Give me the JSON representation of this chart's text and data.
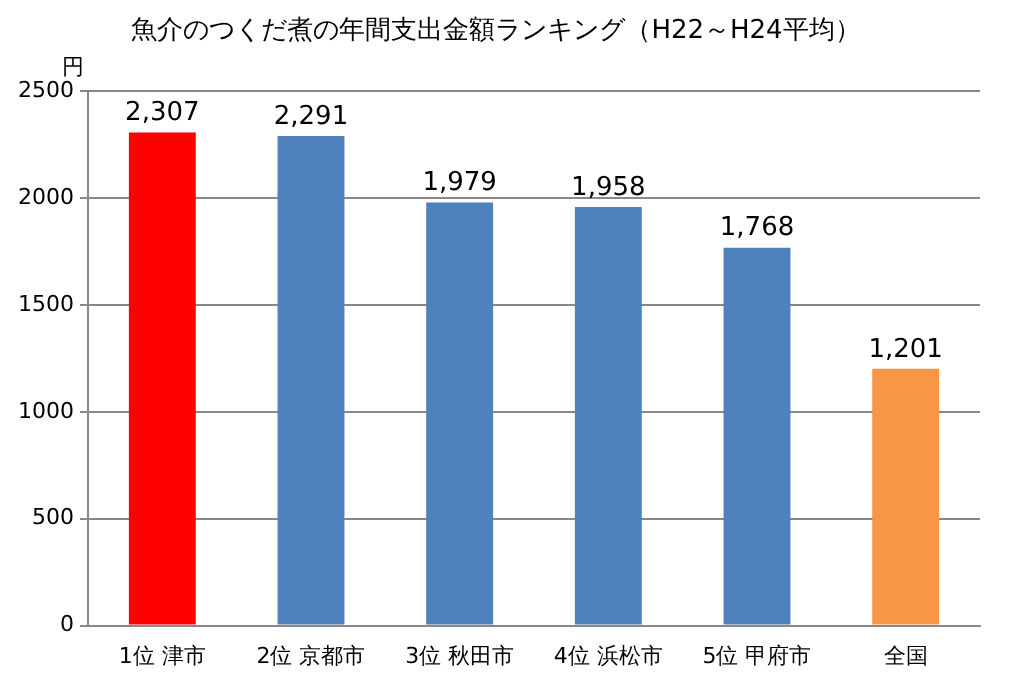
{
  "chart_data": {
    "type": "bar",
    "title": "魚介のつくだ煮の年間支出金額ランキング（H22～H24平均）",
    "ylabel": "円",
    "categories": [
      "1位 津市",
      "2位 京都市",
      "3位 秋田市",
      "4位 浜松市",
      "5位 甲府市",
      "全国"
    ],
    "values": [
      2307,
      2291,
      1979,
      1958,
      1768,
      1201
    ],
    "colors": [
      "#ff0000",
      "#4f81bd",
      "#4f81bd",
      "#4f81bd",
      "#4f81bd",
      "#f79646"
    ],
    "value_labels": [
      "2,307",
      "2,291",
      "1,979",
      "1,958",
      "1,768",
      "1,201"
    ],
    "ylim": [
      0,
      2500
    ],
    "yticks": [
      0,
      500,
      1000,
      1500,
      2000,
      2500
    ],
    "grid": "y",
    "legend": false
  }
}
